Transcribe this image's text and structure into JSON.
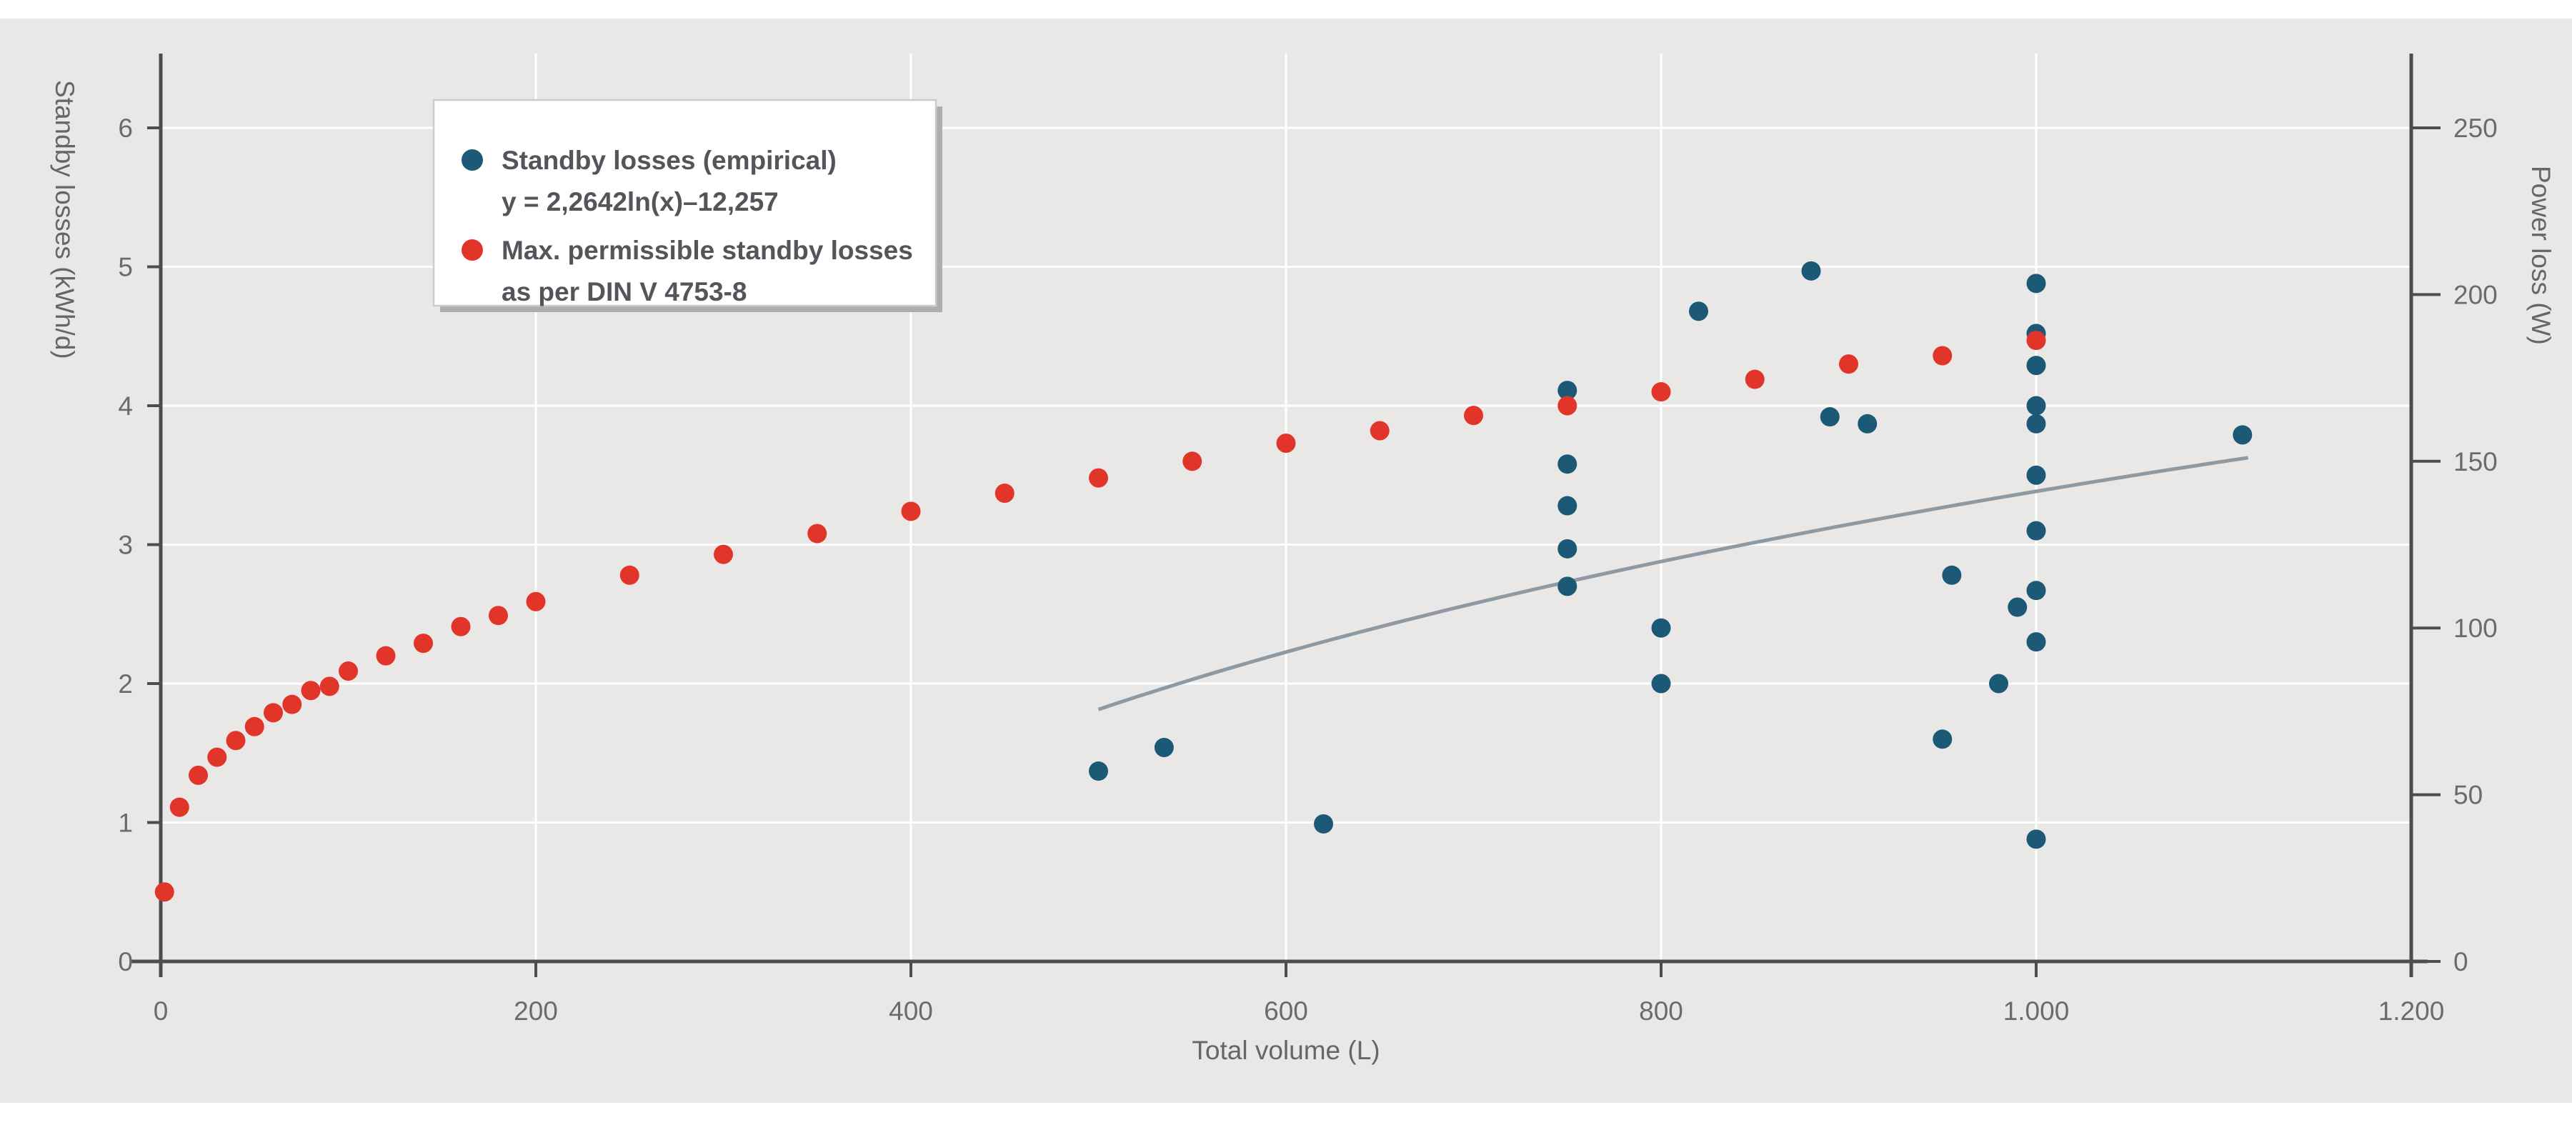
{
  "page": {
    "background": "#ffffff",
    "panel_background": "#e9e8e7"
  },
  "chart_data": {
    "type": "scatter",
    "xlabel": "Total volume (L)",
    "ylabel_left": "Standby losses (kWh/d)",
    "ylabel_right": "Power loss (W)",
    "xlim": [
      0,
      1200
    ],
    "ylim_left": [
      0,
      6
    ],
    "ylim_right": [
      0,
      250
    ],
    "grid": true,
    "legend_position": "top-left",
    "colors": {
      "empirical": "#1b5976",
      "permissible": "#e2352a",
      "trendline": "#8e99a2",
      "axis": "#4d4d4d",
      "gridline": "#ffffff",
      "tick_text": "#6b6b6b"
    },
    "x_ticks": [
      {
        "v": 0,
        "label": "0"
      },
      {
        "v": 200,
        "label": "200"
      },
      {
        "v": 400,
        "label": "400"
      },
      {
        "v": 600,
        "label": "600"
      },
      {
        "v": 800,
        "label": "800"
      },
      {
        "v": 1000,
        "label": "1.000"
      },
      {
        "v": 1200,
        "label": "1.200"
      }
    ],
    "y_ticks_left": [
      {
        "v": 0,
        "label": "0"
      },
      {
        "v": 1,
        "label": "1"
      },
      {
        "v": 2,
        "label": "2"
      },
      {
        "v": 3,
        "label": "3"
      },
      {
        "v": 4,
        "label": "4"
      },
      {
        "v": 5,
        "label": "5"
      },
      {
        "v": 6,
        "label": "6"
      }
    ],
    "y_ticks_right": [
      {
        "v": 0,
        "label": "0"
      },
      {
        "v": 50,
        "label": "50"
      },
      {
        "v": 100,
        "label": "100"
      },
      {
        "v": 150,
        "label": "150"
      },
      {
        "v": 200,
        "label": "200"
      },
      {
        "v": 250,
        "label": "250"
      }
    ],
    "series": [
      {
        "name": "Standby losses (empirical)",
        "equation": "y = 2,2642ln(x)–12,257",
        "color": "#1b5976",
        "marker": "circle",
        "points": [
          [
            500,
            1.37
          ],
          [
            535,
            1.54
          ],
          [
            620,
            0.99
          ],
          [
            750,
            2.7
          ],
          [
            750,
            2.97
          ],
          [
            750,
            3.28
          ],
          [
            750,
            3.58
          ],
          [
            750,
            4.11
          ],
          [
            800,
            2.0
          ],
          [
            800,
            2.4
          ],
          [
            820,
            4.68
          ],
          [
            880,
            4.97
          ],
          [
            890,
            3.92
          ],
          [
            910,
            3.87
          ],
          [
            950,
            1.6
          ],
          [
            955,
            2.78
          ],
          [
            980,
            2.0
          ],
          [
            990,
            2.55
          ],
          [
            1000,
            0.88
          ],
          [
            1000,
            2.3
          ],
          [
            1000,
            2.67
          ],
          [
            1000,
            3.1
          ],
          [
            1000,
            3.5
          ],
          [
            1000,
            3.87
          ],
          [
            1000,
            4.0
          ],
          [
            1000,
            4.29
          ],
          [
            1000,
            4.52
          ],
          [
            1000,
            4.88
          ],
          [
            1110,
            3.79
          ]
        ]
      },
      {
        "name": "Max. permissible standby losses as per DIN V 4753-8",
        "color": "#e2352a",
        "marker": "circle",
        "points": [
          [
            2,
            0.5
          ],
          [
            10,
            1.11
          ],
          [
            20,
            1.34
          ],
          [
            30,
            1.47
          ],
          [
            40,
            1.59
          ],
          [
            50,
            1.69
          ],
          [
            60,
            1.79
          ],
          [
            70,
            1.85
          ],
          [
            80,
            1.95
          ],
          [
            90,
            1.98
          ],
          [
            100,
            2.09
          ],
          [
            120,
            2.2
          ],
          [
            140,
            2.29
          ],
          [
            160,
            2.41
          ],
          [
            180,
            2.49
          ],
          [
            200,
            2.59
          ],
          [
            250,
            2.78
          ],
          [
            300,
            2.93
          ],
          [
            350,
            3.08
          ],
          [
            400,
            3.24
          ],
          [
            450,
            3.37
          ],
          [
            500,
            3.48
          ],
          [
            550,
            3.6
          ],
          [
            600,
            3.73
          ],
          [
            650,
            3.82
          ],
          [
            700,
            3.93
          ],
          [
            750,
            4.0
          ],
          [
            800,
            4.1
          ],
          [
            850,
            4.19
          ],
          [
            900,
            4.3
          ],
          [
            950,
            4.36
          ],
          [
            1000,
            4.47
          ]
        ]
      }
    ],
    "trendline": {
      "for_series": "Standby losses (empirical)",
      "a": 2.2642,
      "b": -12.257,
      "x_start": 500,
      "x_end": 1113,
      "color": "#8e99a2"
    }
  },
  "legend": {
    "entries": [
      {
        "marker_color": "#1b5976",
        "line1": "Standby losses (empirical)",
        "line2": "y = 2,2642ln(x)–12,257"
      },
      {
        "marker_color": "#e2352a",
        "line1": "Max. permissible standby losses",
        "line2": "as per DIN V 4753-8"
      }
    ]
  }
}
